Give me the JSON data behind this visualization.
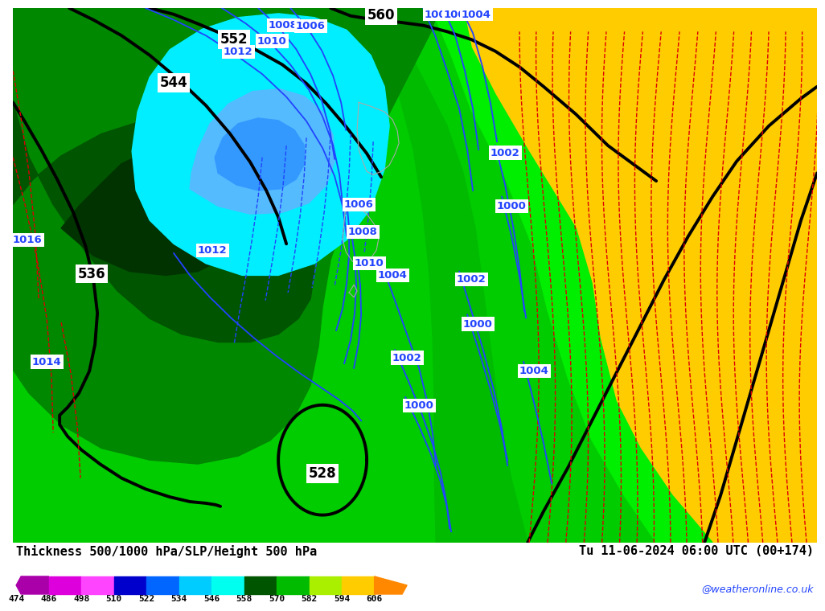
{
  "title_left": "Thickness 500/1000 hPa/SLP/Height 500 hPa",
  "title_right": "Tu 11-06-2024 06:00 UTC (00+174)",
  "colorbar_values": [
    474,
    486,
    498,
    510,
    522,
    534,
    546,
    558,
    570,
    582,
    594,
    606
  ],
  "colorbar_colors": [
    "#AA00AA",
    "#DD00DD",
    "#FF44FF",
    "#0000CC",
    "#0066FF",
    "#00CCFF",
    "#00FFEE",
    "#005500",
    "#00BB00",
    "#AAEE00",
    "#FFCC00",
    "#FF8800"
  ],
  "background_color": "#ffffff",
  "watermark": "@weatheronline.co.uk",
  "fig_width": 10.0,
  "fig_height": 7.33,
  "map_bg_color": "#00CC00",
  "yellow_color": "#FFCC00",
  "dark_green1": "#008800",
  "dark_green2": "#005500",
  "dark_green3": "#003300",
  "cyan_color": "#00EEFF",
  "blue_color": "#55BBFF",
  "bright_green": "#00EE00"
}
